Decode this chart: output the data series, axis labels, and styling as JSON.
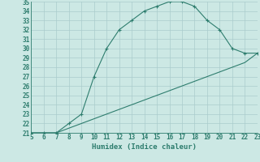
{
  "xlabel": "Humidex (Indice chaleur)",
  "line1_x": [
    5,
    6,
    7,
    8,
    9,
    10,
    11,
    12,
    13,
    14,
    15,
    16,
    17,
    18,
    19,
    20,
    21,
    22,
    23
  ],
  "line1_y": [
    21,
    21,
    21,
    22,
    23,
    27,
    30,
    32,
    33,
    34,
    34.5,
    35,
    35,
    34.5,
    33,
    32,
    30,
    29.5,
    29.5
  ],
  "line2_x": [
    5,
    6,
    7,
    8,
    9,
    10,
    11,
    12,
    13,
    14,
    15,
    16,
    17,
    18,
    19,
    20,
    21,
    22,
    23
  ],
  "line2_y": [
    21,
    21,
    21,
    21.5,
    22,
    22.5,
    23,
    23.5,
    24,
    24.5,
    25,
    25.5,
    26,
    26.5,
    27,
    27.5,
    28,
    28.5,
    29.5
  ],
  "line_color": "#2e7d6e",
  "bg_color": "#cce8e4",
  "grid_color": "#aacccc",
  "xlim": [
    5,
    23
  ],
  "ylim": [
    21,
    35
  ],
  "yticks": [
    21,
    22,
    23,
    24,
    25,
    26,
    27,
    28,
    29,
    30,
    31,
    32,
    33,
    34,
    35
  ],
  "xticks": [
    5,
    6,
    7,
    8,
    9,
    10,
    11,
    12,
    13,
    14,
    15,
    16,
    17,
    18,
    19,
    20,
    21,
    22,
    23
  ],
  "tick_fontsize": 5.5,
  "xlabel_fontsize": 6.5
}
